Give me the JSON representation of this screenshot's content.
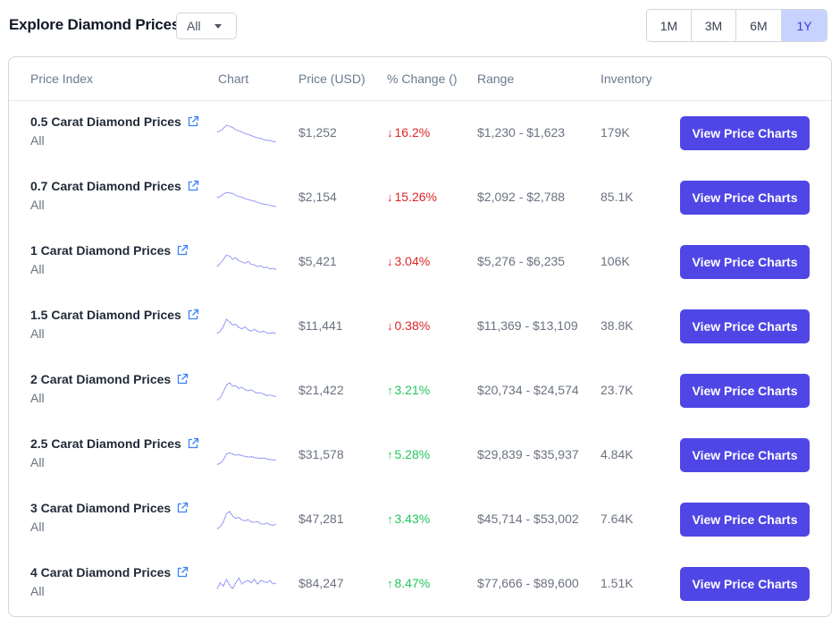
{
  "header": {
    "title": "Explore Diamond Prices",
    "filter_value": "All"
  },
  "range_buttons": [
    {
      "label": "1M",
      "active": false
    },
    {
      "label": "3M",
      "active": false
    },
    {
      "label": "6M",
      "active": false
    },
    {
      "label": "1Y",
      "active": true
    }
  ],
  "columns": {
    "index": "Price Index",
    "chart": "Chart",
    "price": "Price (USD)",
    "change": "% Change ()",
    "range": "Range",
    "inventory": "Inventory"
  },
  "colors": {
    "accent": "#4f46e5",
    "active_range_bg": "#c7d2fe",
    "down": "#dc2626",
    "up": "#22c55e",
    "sparkline": "#6366f1"
  },
  "rows": [
    {
      "name": "0.5 Carat Diamond Prices",
      "sub": "All",
      "price": "$1,252",
      "change": "16.2%",
      "direction": "down",
      "range": "$1,230 - $1,623",
      "inventory": "179K",
      "button": "View Price Charts",
      "spark": [
        0.55,
        0.6,
        0.7,
        0.85,
        0.8,
        0.75,
        0.65,
        0.6,
        0.55,
        0.48,
        0.45,
        0.4,
        0.35,
        0.3,
        0.28,
        0.22,
        0.2,
        0.18,
        0.15,
        0.12
      ]
    },
    {
      "name": "0.7 Carat Diamond Prices",
      "sub": "All",
      "price": "$2,154",
      "change": "15.26%",
      "direction": "down",
      "range": "$2,092 - $2,788",
      "inventory": "85.1K",
      "button": "View Price Charts",
      "spark": [
        0.5,
        0.55,
        0.65,
        0.72,
        0.7,
        0.68,
        0.6,
        0.55,
        0.52,
        0.45,
        0.42,
        0.38,
        0.35,
        0.3,
        0.25,
        0.22,
        0.2,
        0.17,
        0.14,
        0.12
      ]
    },
    {
      "name": "1 Carat Diamond Prices",
      "sub": "All",
      "price": "$5,421",
      "change": "3.04%",
      "direction": "down",
      "range": "$5,276 - $6,235",
      "inventory": "106K",
      "button": "View Price Charts",
      "spark": [
        0.3,
        0.45,
        0.6,
        0.8,
        0.75,
        0.62,
        0.68,
        0.55,
        0.5,
        0.45,
        0.52,
        0.4,
        0.38,
        0.3,
        0.35,
        0.25,
        0.28,
        0.2,
        0.22,
        0.18
      ]
    },
    {
      "name": "1.5 Carat Diamond Prices",
      "sub": "All",
      "price": "$11,441",
      "change": "0.38%",
      "direction": "down",
      "range": "$11,369 - $13,109",
      "inventory": "38.8K",
      "button": "View Price Charts",
      "spark": [
        0.2,
        0.3,
        0.5,
        0.8,
        0.7,
        0.55,
        0.6,
        0.45,
        0.4,
        0.48,
        0.35,
        0.3,
        0.38,
        0.28,
        0.25,
        0.3,
        0.22,
        0.2,
        0.24,
        0.18
      ]
    },
    {
      "name": "2 Carat Diamond Prices",
      "sub": "All",
      "price": "$21,422",
      "change": "3.21%",
      "direction": "up",
      "range": "$20,734 - $24,574",
      "inventory": "23.7K",
      "button": "View Price Charts",
      "spark": [
        0.1,
        0.2,
        0.45,
        0.75,
        0.85,
        0.7,
        0.72,
        0.6,
        0.65,
        0.55,
        0.5,
        0.55,
        0.45,
        0.4,
        0.42,
        0.35,
        0.3,
        0.32,
        0.28,
        0.25
      ]
    },
    {
      "name": "2.5 Carat Diamond Prices",
      "sub": "All",
      "price": "$31,578",
      "change": "5.28%",
      "direction": "up",
      "range": "$29,839 - $35,937",
      "inventory": "4.84K",
      "button": "View Price Charts",
      "spark": [
        0.1,
        0.15,
        0.3,
        0.55,
        0.6,
        0.55,
        0.5,
        0.52,
        0.48,
        0.45,
        0.42,
        0.44,
        0.4,
        0.38,
        0.36,
        0.38,
        0.34,
        0.32,
        0.3,
        0.28
      ]
    },
    {
      "name": "3 Carat Diamond Prices",
      "sub": "All",
      "price": "$47,281",
      "change": "3.43%",
      "direction": "up",
      "range": "$45,714 - $53,002",
      "inventory": "7.64K",
      "button": "View Price Charts",
      "spark": [
        0.1,
        0.2,
        0.4,
        0.75,
        0.85,
        0.65,
        0.55,
        0.6,
        0.48,
        0.45,
        0.5,
        0.4,
        0.38,
        0.42,
        0.32,
        0.3,
        0.35,
        0.28,
        0.25,
        0.3
      ]
    },
    {
      "name": "4 Carat Diamond Prices",
      "sub": "All",
      "price": "$84,247",
      "change": "8.47%",
      "direction": "up",
      "range": "$77,666 - $89,600",
      "inventory": "1.51K",
      "button": "View Price Charts",
      "spark": [
        0.3,
        0.55,
        0.4,
        0.7,
        0.45,
        0.3,
        0.55,
        0.75,
        0.5,
        0.6,
        0.65,
        0.55,
        0.7,
        0.5,
        0.65,
        0.6,
        0.55,
        0.65,
        0.5,
        0.55
      ]
    }
  ]
}
